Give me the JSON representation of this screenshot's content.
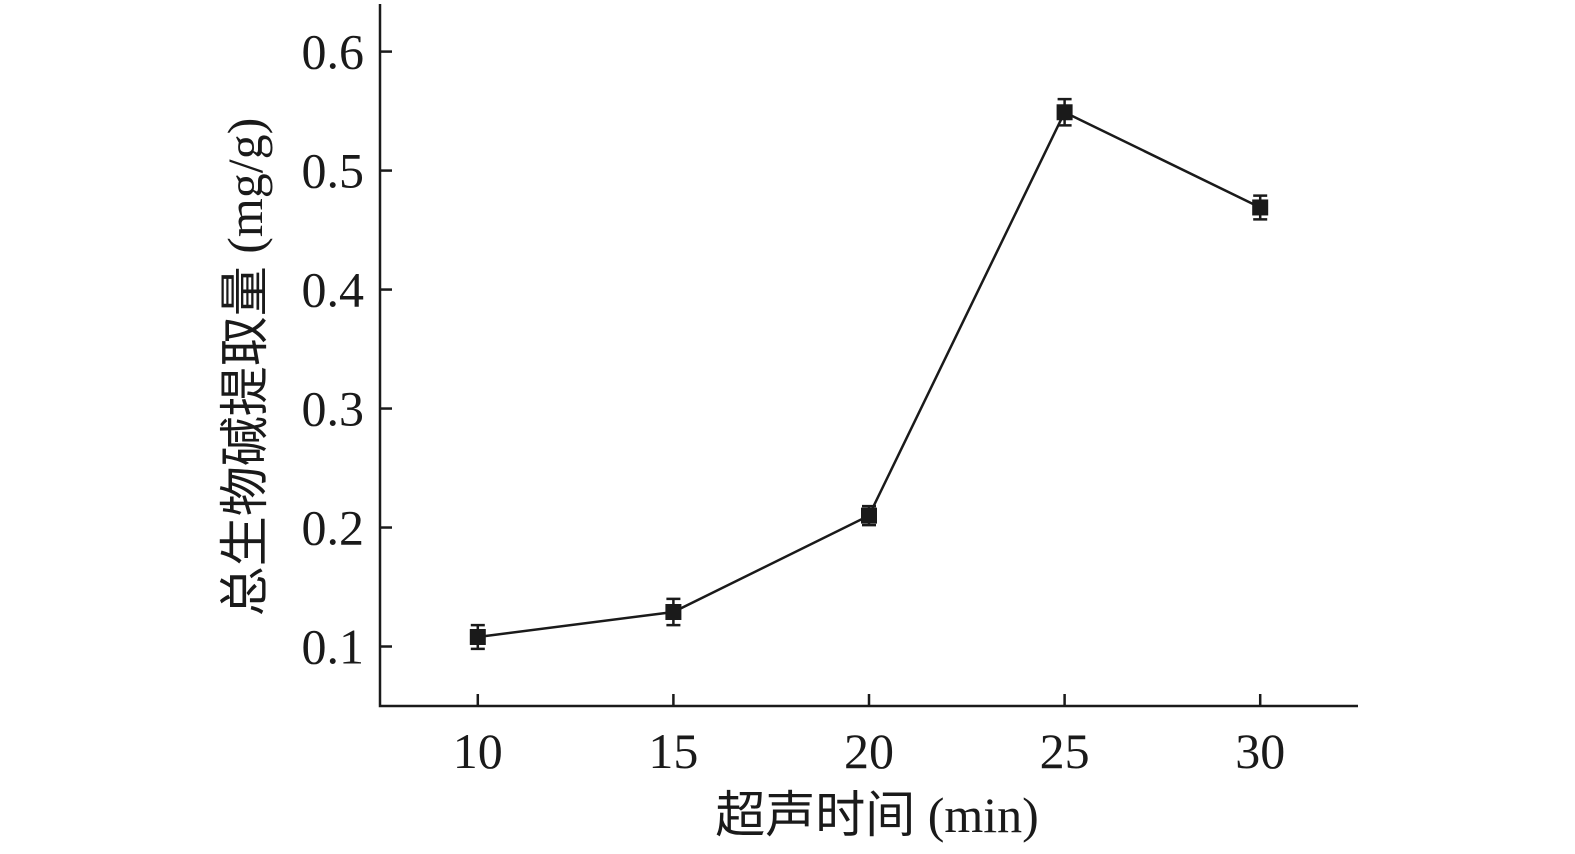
{
  "chart_data": {
    "type": "line",
    "title": "",
    "xlabel": "超声时间 (min)",
    "ylabel": "总生物碱提取量 (mg/g)",
    "x": [
      10,
      15,
      20,
      25,
      30
    ],
    "x_ticks": [
      "10",
      "15",
      "20",
      "25",
      "30"
    ],
    "y_ticks": [
      "0.1",
      "0.2",
      "0.3",
      "0.4",
      "0.5",
      "0.6"
    ],
    "xlim": [
      7.5,
      32.5
    ],
    "ylim": [
      0.05,
      0.64
    ],
    "grid": false,
    "legend": "none",
    "series": [
      {
        "values": [
          0.108,
          0.129,
          0.21,
          0.549,
          0.469
        ],
        "errors": [
          0.01,
          0.011,
          0.008,
          0.011,
          0.01
        ],
        "marker": "filled-square",
        "color": "#1a1a1a"
      }
    ]
  }
}
